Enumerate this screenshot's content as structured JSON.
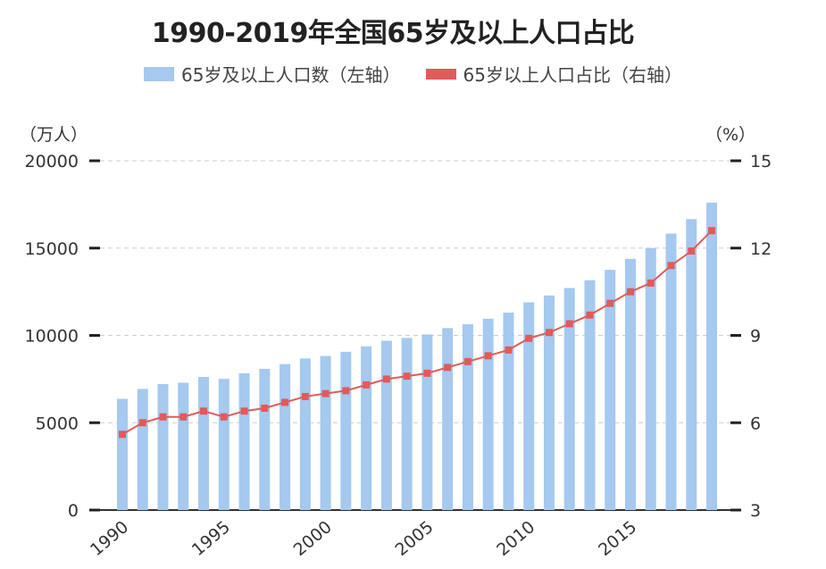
{
  "chart_data": {
    "type": "bar+line",
    "title": "1990-2019年全国65岁及以上人口占比",
    "legend_position": "top",
    "grid": true,
    "categories": [
      1990,
      1991,
      1992,
      1993,
      1994,
      1995,
      1996,
      1997,
      1998,
      1999,
      2000,
      2001,
      2002,
      2003,
      2004,
      2005,
      2006,
      2007,
      2008,
      2009,
      2010,
      2011,
      2012,
      2013,
      2014,
      2015,
      2016,
      2017,
      2018,
      2019
    ],
    "x_tick_labels": [
      "1990",
      "1995",
      "2000",
      "2005",
      "2010",
      "2015"
    ],
    "left_axis": {
      "unit": "（万人）",
      "range": [
        0,
        20000
      ],
      "ticks": [
        "0",
        "5000",
        "10000",
        "15000",
        "20000"
      ]
    },
    "right_axis": {
      "unit": "（%）",
      "range": [
        3,
        15
      ],
      "ticks": [
        "3",
        "6",
        "9",
        "12",
        "15"
      ]
    },
    "series": [
      {
        "name": "65岁及以上人口数（左轴）",
        "type": "bar",
        "axis": "left",
        "color": "#a5c9ef",
        "values": [
          6368,
          6938,
          7218,
          7289,
          7622,
          7510,
          7833,
          8085,
          8359,
          8679,
          8821,
          9062,
          9377,
          9692,
          9857,
          10055,
          10419,
          10636,
          10956,
          11307,
          11894,
          12288,
          12714,
          13161,
          13755,
          14386,
          15003,
          15831,
          16658,
          17603
        ]
      },
      {
        "name": "65岁以上人口占比（右轴）",
        "type": "line",
        "axis": "right",
        "color": "#e25a5a",
        "values": [
          5.6,
          6.0,
          6.2,
          6.2,
          6.4,
          6.2,
          6.4,
          6.5,
          6.7,
          6.9,
          7.0,
          7.1,
          7.3,
          7.5,
          7.6,
          7.7,
          7.9,
          8.1,
          8.3,
          8.5,
          8.9,
          9.1,
          9.4,
          9.7,
          10.1,
          10.5,
          10.8,
          11.4,
          11.9,
          12.6
        ]
      }
    ]
  }
}
